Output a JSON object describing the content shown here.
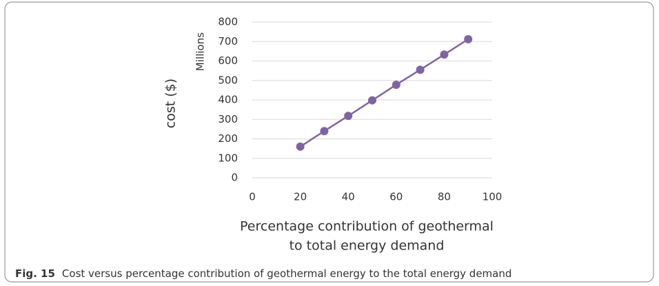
{
  "chart_data": {
    "type": "line",
    "ylabel": "cost ($)",
    "yunit": "Millions",
    "xlabel": [
      "Percentage contribution of geothermal",
      "to total energy demand"
    ],
    "x": [
      20,
      30,
      40,
      50,
      60,
      70,
      80,
      90
    ],
    "values": [
      160,
      240,
      318,
      398,
      478,
      555,
      633,
      712
    ],
    "color": "#8064a2",
    "xlim": [
      0,
      100
    ],
    "xticks": [
      0,
      20,
      40,
      60,
      80,
      100
    ],
    "ylim": [
      0,
      800
    ],
    "yticks": [
      0,
      100,
      200,
      300,
      400,
      500,
      600,
      700,
      800
    ],
    "grid": true
  },
  "caption": {
    "label": "Fig. 15",
    "text": "Cost versus percentage contribution of geothermal energy to the total energy demand"
  }
}
